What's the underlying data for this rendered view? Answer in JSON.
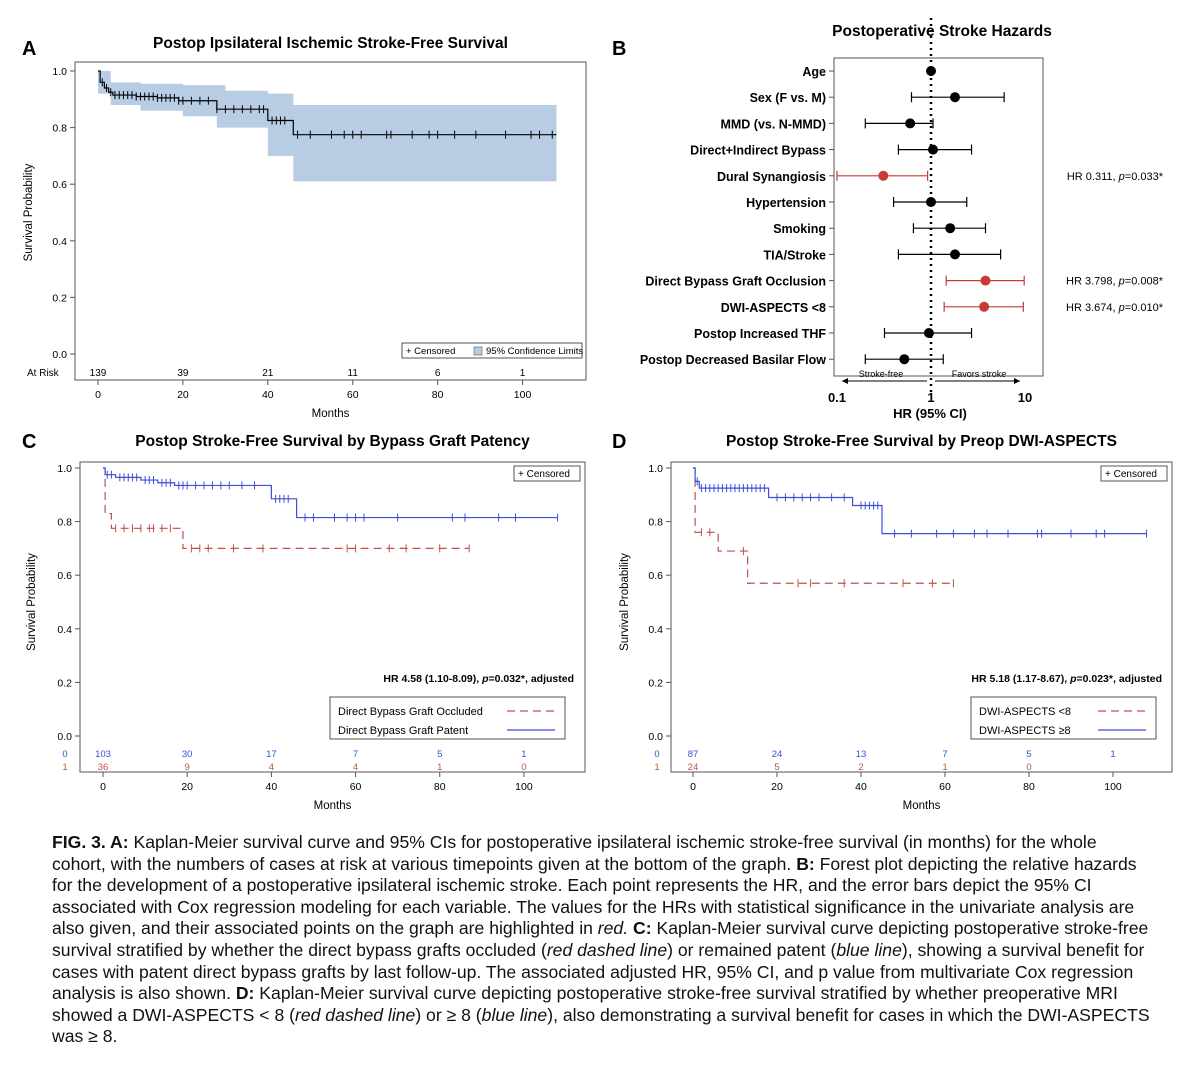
{
  "panel_letters": [
    "A",
    "B",
    "C",
    "D"
  ],
  "chart_data": [
    {
      "panel": "A",
      "type": "line",
      "title": "Postop Ipsilateral Ischemic Stroke-Free Survival",
      "xlabel": "Months",
      "ylabel": "Survival Probability",
      "xlim": [
        0,
        110
      ],
      "ylim": [
        0,
        1
      ],
      "xticks": [
        "0",
        "20",
        "40",
        "60",
        "80",
        "100"
      ],
      "yticks": [
        "0.0",
        "0.2",
        "0.4",
        "0.6",
        "0.8",
        "1.0"
      ],
      "legend": {
        "position": "bottom-right",
        "entries": [
          "+ Censored",
          "95% Confidence Limits"
        ]
      },
      "series": [
        {
          "color": "#000000",
          "style": "step",
          "points": [
            [
              0,
              1.0
            ],
            [
              0.5,
              0.96
            ],
            [
              1.5,
              0.94
            ],
            [
              2.5,
              0.925
            ],
            [
              3.5,
              0.915
            ],
            [
              9,
              0.91
            ],
            [
              14,
              0.905
            ],
            [
              19,
              0.895
            ],
            [
              28,
              0.865
            ],
            [
              40,
              0.825
            ],
            [
              46,
              0.775
            ],
            [
              108,
              0.775
            ]
          ],
          "censored": [
            1,
            2,
            3,
            4,
            5,
            6,
            7,
            8,
            9,
            10,
            11,
            12,
            13,
            14,
            15,
            16,
            17,
            18,
            19,
            20,
            22,
            24,
            26,
            28,
            30,
            32,
            34,
            36,
            38,
            39,
            41,
            42,
            43,
            44,
            47,
            50,
            55,
            58,
            60,
            62,
            68,
            69,
            74,
            78,
            80,
            84,
            89,
            96,
            102,
            104,
            107
          ]
        }
      ],
      "ci_band": {
        "color": "#b8cce4",
        "upper": [
          [
            0,
            1.0
          ],
          [
            3,
            0.96
          ],
          [
            10,
            0.955
          ],
          [
            20,
            0.95
          ],
          [
            30,
            0.93
          ],
          [
            40,
            0.92
          ],
          [
            46,
            0.88
          ],
          [
            108,
            0.88
          ]
        ],
        "lower": [
          [
            0,
            0.92
          ],
          [
            3,
            0.88
          ],
          [
            10,
            0.86
          ],
          [
            20,
            0.84
          ],
          [
            28,
            0.8
          ],
          [
            40,
            0.7
          ],
          [
            46,
            0.61
          ],
          [
            108,
            0.61
          ]
        ]
      },
      "at_risk": {
        "label": "At Risk",
        "times": [
          0,
          20,
          40,
          60,
          80,
          100
        ],
        "values": [
          "139",
          "39",
          "21",
          "11",
          "6",
          "1"
        ]
      }
    },
    {
      "panel": "B",
      "type": "forest",
      "title": "Postoperative Stroke Hazards",
      "xlabel": "HR (95% CI)",
      "xscale": "log",
      "xlim": [
        0.1,
        15
      ],
      "xticks": [
        "0.1",
        "1",
        "10"
      ],
      "reference_line": 1,
      "direction_labels": {
        "left": "Stroke-free",
        "right": "Favors stroke"
      },
      "rows": [
        {
          "label": "Age",
          "hr": 1.0,
          "lo": 0.98,
          "hi": 1.02,
          "sig": false,
          "annotation": ""
        },
        {
          "label": "Sex (F vs. M)",
          "hr": 1.8,
          "lo": 0.62,
          "hi": 6.0,
          "sig": false,
          "annotation": ""
        },
        {
          "label": "MMD (vs. N-MMD)",
          "hr": 0.6,
          "lo": 0.2,
          "hi": 1.05,
          "sig": false,
          "annotation": ""
        },
        {
          "label": "Direct+Indirect Bypass",
          "hr": 1.05,
          "lo": 0.45,
          "hi": 2.7,
          "sig": false,
          "annotation": ""
        },
        {
          "label": "Dural Synangiosis",
          "hr": 0.311,
          "lo": 0.1,
          "hi": 0.92,
          "sig": true,
          "annotation": "HR 0.311, p=0.033*"
        },
        {
          "label": "Hypertension",
          "hr": 1.0,
          "lo": 0.4,
          "hi": 2.4,
          "sig": false,
          "annotation": ""
        },
        {
          "label": "Smoking",
          "hr": 1.6,
          "lo": 0.65,
          "hi": 3.8,
          "sig": false,
          "annotation": ""
        },
        {
          "label": "TIA/Stroke",
          "hr": 1.8,
          "lo": 0.45,
          "hi": 5.5,
          "sig": false,
          "annotation": ""
        },
        {
          "label": "Direct Bypass Graft Occlusion",
          "hr": 3.798,
          "lo": 1.45,
          "hi": 9.8,
          "sig": true,
          "annotation": "HR 3.798, p=0.008*"
        },
        {
          "label": "DWI-ASPECTS <8",
          "hr": 3.674,
          "lo": 1.38,
          "hi": 9.6,
          "sig": true,
          "annotation": "HR 3.674, p=0.010*"
        },
        {
          "label": "Postop Increased THF",
          "hr": 0.95,
          "lo": 0.32,
          "hi": 2.7,
          "sig": false,
          "annotation": ""
        },
        {
          "label": "Postop Decreased Basilar Flow",
          "hr": 0.52,
          "lo": 0.2,
          "hi": 1.35,
          "sig": false,
          "annotation": ""
        }
      ]
    },
    {
      "panel": "C",
      "type": "line",
      "title": "Postop Stroke-Free Survival by Bypass Graft Patency",
      "xlabel": "Months",
      "ylabel": "Survival Probability",
      "xlim": [
        0,
        110
      ],
      "ylim": [
        0,
        1
      ],
      "xticks": [
        "0",
        "20",
        "40",
        "60",
        "80",
        "100"
      ],
      "yticks": [
        "0.0",
        "0.2",
        "0.4",
        "0.6",
        "0.8",
        "1.0"
      ],
      "censored_legend": "+ Censored",
      "stat_text": "HR 4.58 (1.10-8.09), p=0.032*, adjusted",
      "series": [
        {
          "name": "Direct Bypass Graft Occluded",
          "color": "#c0504d",
          "dash": true,
          "at_risk_label": "1",
          "at_risk_values": [
            "36",
            "9",
            "4",
            "4",
            "1",
            "0"
          ],
          "points": [
            [
              0,
              1.0
            ],
            [
              0.5,
              0.83
            ],
            [
              2,
              0.775
            ],
            [
              19,
              0.7
            ],
            [
              87,
              0.7
            ]
          ],
          "censored": [
            3,
            5,
            7,
            9,
            11,
            12,
            14,
            16,
            21,
            23,
            25,
            31,
            38,
            58,
            60,
            68,
            72,
            80,
            87
          ]
        },
        {
          "name": "Direct Bypass Graft Patent",
          "color": "#3b4fd8",
          "dash": false,
          "at_risk_label": "0",
          "at_risk_values": [
            "103",
            "30",
            "17",
            "7",
            "5",
            "1"
          ],
          "points": [
            [
              0,
              1.0
            ],
            [
              0.5,
              0.975
            ],
            [
              3,
              0.965
            ],
            [
              9,
              0.955
            ],
            [
              13,
              0.945
            ],
            [
              17,
              0.935
            ],
            [
              40,
              0.885
            ],
            [
              46,
              0.815
            ],
            [
              108,
              0.815
            ]
          ],
          "censored": [
            1,
            2,
            4,
            5,
            6,
            7,
            8,
            10,
            11,
            12,
            14,
            15,
            16,
            18,
            19,
            20,
            22,
            24,
            26,
            28,
            30,
            33,
            36,
            41,
            42,
            43,
            44,
            48,
            50,
            55,
            58,
            60,
            62,
            70,
            83,
            86,
            94,
            98,
            108
          ]
        }
      ],
      "at_risk_times": [
        0,
        20,
        40,
        60,
        80,
        100
      ]
    },
    {
      "panel": "D",
      "type": "line",
      "title": "Postop Stroke-Free Survival by Preop DWI-ASPECTS",
      "xlabel": "Months",
      "ylabel": "Survival Probability",
      "xlim": [
        0,
        110
      ],
      "ylim": [
        0,
        1
      ],
      "xticks": [
        "0",
        "20",
        "40",
        "60",
        "80",
        "100"
      ],
      "yticks": [
        "0.0",
        "0.2",
        "0.4",
        "0.6",
        "0.8",
        "1.0"
      ],
      "censored_legend": "+ Censored",
      "stat_text": "HR 5.18 (1.17-8.67), p=0.023*, adjusted",
      "series": [
        {
          "name": "DWI-ASPECTS <8",
          "color": "#c0504d",
          "dash": true,
          "at_risk_label": "1",
          "at_risk_values": [
            "24",
            "5",
            "2",
            "1",
            "0",
            ""
          ],
          "points": [
            [
              0,
              1.0
            ],
            [
              0.5,
              0.76
            ],
            [
              6,
              0.69
            ],
            [
              13,
              0.57
            ],
            [
              62,
              0.57
            ]
          ],
          "censored": [
            2,
            4,
            12,
            25,
            28,
            36,
            50,
            57,
            62
          ]
        },
        {
          "name": "DWI-ASPECTS ≥8",
          "color": "#3b4fd8",
          "dash": false,
          "at_risk_label": "0",
          "at_risk_values": [
            "87",
            "24",
            "13",
            "7",
            "5",
            "1"
          ],
          "points": [
            [
              0,
              1.0
            ],
            [
              0.5,
              0.95
            ],
            [
              1.5,
              0.925
            ],
            [
              18,
              0.89
            ],
            [
              38,
              0.86
            ],
            [
              45,
              0.755
            ],
            [
              108,
              0.755
            ]
          ],
          "censored": [
            1,
            2,
            3,
            4,
            5,
            6,
            7,
            8,
            9,
            10,
            11,
            12,
            13,
            14,
            15,
            16,
            17,
            20,
            22,
            24,
            26,
            28,
            30,
            33,
            36,
            40,
            41,
            42,
            43,
            44,
            48,
            52,
            58,
            62,
            67,
            70,
            75,
            82,
            83,
            90,
            96,
            98,
            108
          ]
        }
      ],
      "at_risk_times": [
        0,
        20,
        40,
        60,
        80,
        100
      ]
    }
  ],
  "caption": [
    {
      "t": "FIG. 3. A:",
      "s": "b"
    },
    {
      "t": " Kaplan-Meier survival curve and 95% CIs for postoperative ipsilateral ischemic stroke-free survival (in months) for the whole cohort, with the numbers of cases at risk at various timepoints given at the bottom of the graph. "
    },
    {
      "t": "B:",
      "s": "b"
    },
    {
      "t": " Forest plot depicting the relative hazards for the development of a postoperative ipsilateral ischemic stroke. Each point represents the HR, and the error bars depict the 95% CI associated with Cox regression modeling for each variable. The values for the HRs with statistical significance in the univariate analysis are also given, and their associated points on the graph are highlighted in "
    },
    {
      "t": "red.",
      "s": "i"
    },
    {
      "t": " "
    },
    {
      "t": "C:",
      "s": "b"
    },
    {
      "t": " Kaplan-Meier survival curve depicting postoperative stroke-free survival stratified by whether the direct bypass grafts occluded ("
    },
    {
      "t": "red dashed line",
      "s": "i"
    },
    {
      "t": ") or remained patent ("
    },
    {
      "t": "blue line",
      "s": "i"
    },
    {
      "t": "), showing a survival benefit for cases with patent direct bypass grafts by last follow-up. The associated adjusted HR, 95% CI, and p value from multivariate Cox regression analysis is also shown. "
    },
    {
      "t": "D:",
      "s": "b"
    },
    {
      "t": " Kaplan-Meier survival curve depicting postoperative stroke-free survival stratified by whether preoperative MRI showed a DWI-ASPECTS < 8 ("
    },
    {
      "t": "red dashed line",
      "s": "i"
    },
    {
      "t": ") or ≥ 8 ("
    },
    {
      "t": "blue line",
      "s": "i"
    },
    {
      "t": "), also demonstrating a survival benefit for cases in which the DWI-ASPECTS was ≥ 8."
    }
  ]
}
